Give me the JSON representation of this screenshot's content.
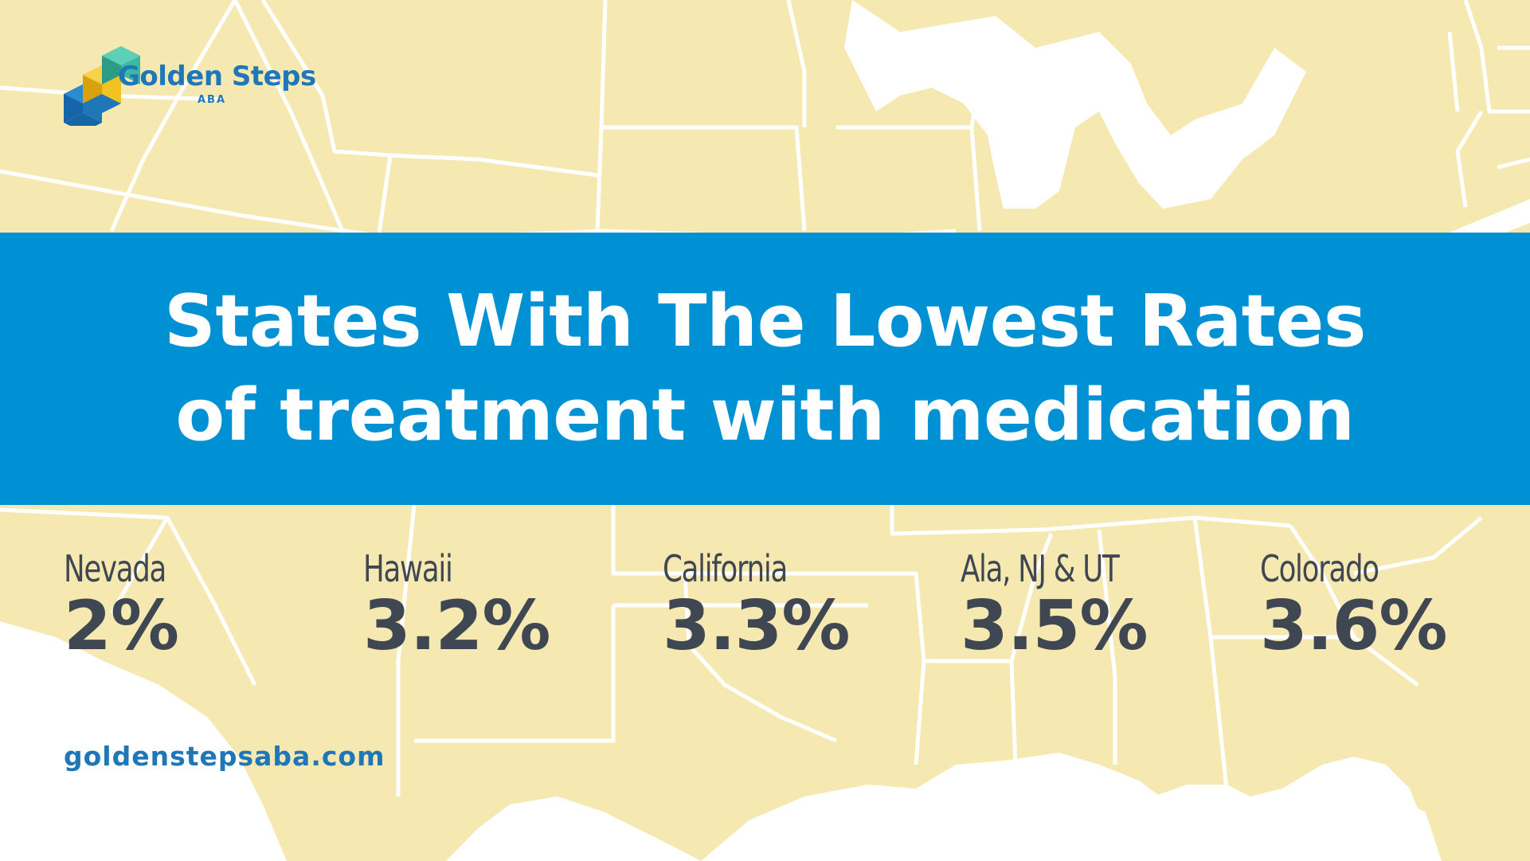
{
  "brand": {
    "name": "Golden Steps",
    "sub": "ABA",
    "website": "goldenstepsaba.com"
  },
  "banner": {
    "line1": "States With The Lowest Rates",
    "line2": "of treatment with medication"
  },
  "stats": [
    {
      "state": "Nevada",
      "value": "2%"
    },
    {
      "state": "Hawaii",
      "value": "3.2%"
    },
    {
      "state": "California",
      "value": "3.3%"
    },
    {
      "state": "Ala, NJ & UT",
      "value": "3.5%"
    },
    {
      "state": "Colorado",
      "value": "3.6%"
    }
  ],
  "colors": {
    "banner": "#0090d4",
    "land": "#f6e8b1",
    "text": "#3f4752",
    "brand": "#1f77b8",
    "logo_teal": "#3bb9a1",
    "logo_yellow": "#f2c122",
    "logo_blue": "#1f77b8"
  }
}
